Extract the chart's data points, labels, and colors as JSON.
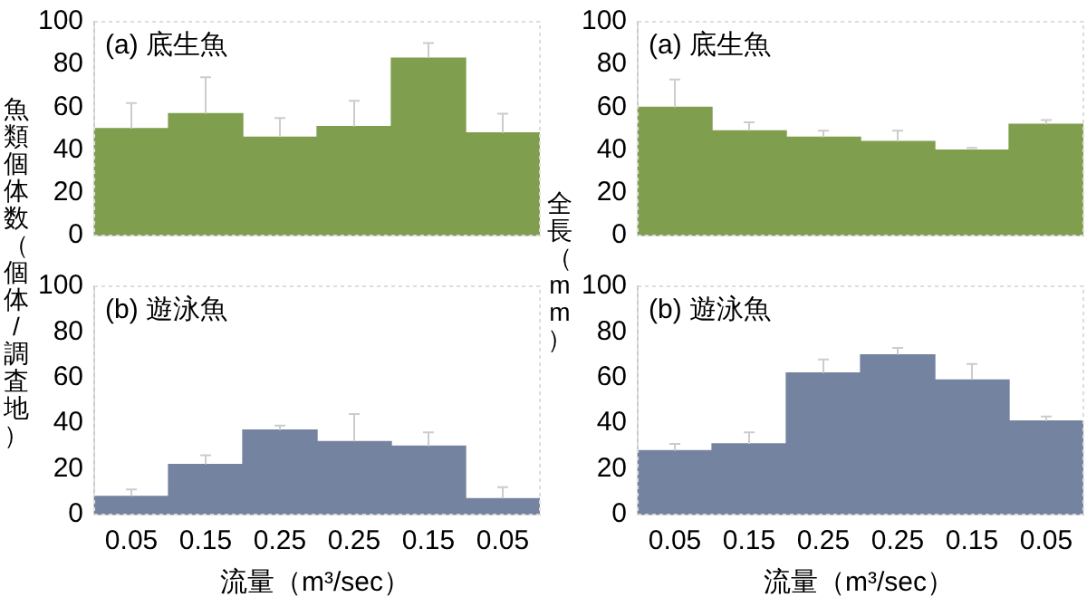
{
  "chart_data": [
    {
      "type": "bar",
      "annotations": [
        "(a) 底生魚"
      ],
      "ylabel": "魚類個体数（個体/調査地）",
      "categories": [
        null,
        null,
        null,
        null,
        null,
        null
      ],
      "color": "#7f9f4f",
      "values": [
        50,
        57,
        46,
        51,
        83,
        48
      ],
      "errors": [
        [
          50,
          62
        ],
        [
          57,
          74
        ],
        [
          46,
          55
        ],
        [
          51,
          63
        ],
        [
          83,
          90
        ],
        [
          48,
          57
        ]
      ],
      "ylim": [
        0,
        100
      ],
      "yticks": [
        0,
        20,
        40,
        60,
        80,
        100
      ],
      "tick_labels": "y"
    },
    {
      "type": "bar",
      "annotations": [
        "(a) 底生魚"
      ],
      "ylabel": "全長（mm）",
      "categories": [
        null,
        null,
        null,
        null,
        null,
        null
      ],
      "color": "#7f9f4f",
      "values": [
        60,
        49,
        46,
        44,
        40,
        52
      ],
      "errors": [
        [
          60,
          73
        ],
        [
          49,
          53
        ],
        [
          46,
          49
        ],
        [
          44,
          49
        ],
        [
          40,
          41
        ],
        [
          52,
          54
        ]
      ],
      "ylim": [
        0,
        100
      ],
      "yticks": [
        0,
        20,
        40,
        60,
        80,
        100
      ],
      "tick_labels": "y"
    },
    {
      "type": "bar",
      "annotations": [
        "(b) 遊泳魚"
      ],
      "xlabel": "流量（m³/sec）",
      "categories": [
        "0.05",
        "0.15",
        "0.25",
        "0.25",
        "0.15",
        "0.05"
      ],
      "color": "#7383a0",
      "values": [
        8,
        22,
        37,
        32,
        30,
        7
      ],
      "errors": [
        [
          8,
          11
        ],
        [
          22,
          26
        ],
        [
          37,
          39
        ],
        [
          32,
          44
        ],
        [
          30,
          36
        ],
        [
          7,
          12
        ]
      ],
      "ylim": [
        0,
        100
      ],
      "yticks": [
        0,
        20,
        40,
        60,
        80,
        100
      ]
    },
    {
      "type": "bar",
      "annotations": [
        "(b) 遊泳魚"
      ],
      "xlabel": "流量（m³/sec）",
      "categories": [
        "0.05",
        "0.15",
        "0.25",
        "0.25",
        "0.15",
        "0.05"
      ],
      "color": "#7383a0",
      "values": [
        28,
        31,
        62,
        70,
        59,
        41
      ],
      "errors": [
        [
          28,
          31
        ],
        [
          31,
          36
        ],
        [
          62,
          68
        ],
        [
          70,
          73
        ],
        [
          59,
          66
        ],
        [
          41,
          43
        ]
      ],
      "ylim": [
        0,
        100
      ],
      "yticks": [
        0,
        20,
        40,
        60,
        80,
        100
      ]
    }
  ]
}
